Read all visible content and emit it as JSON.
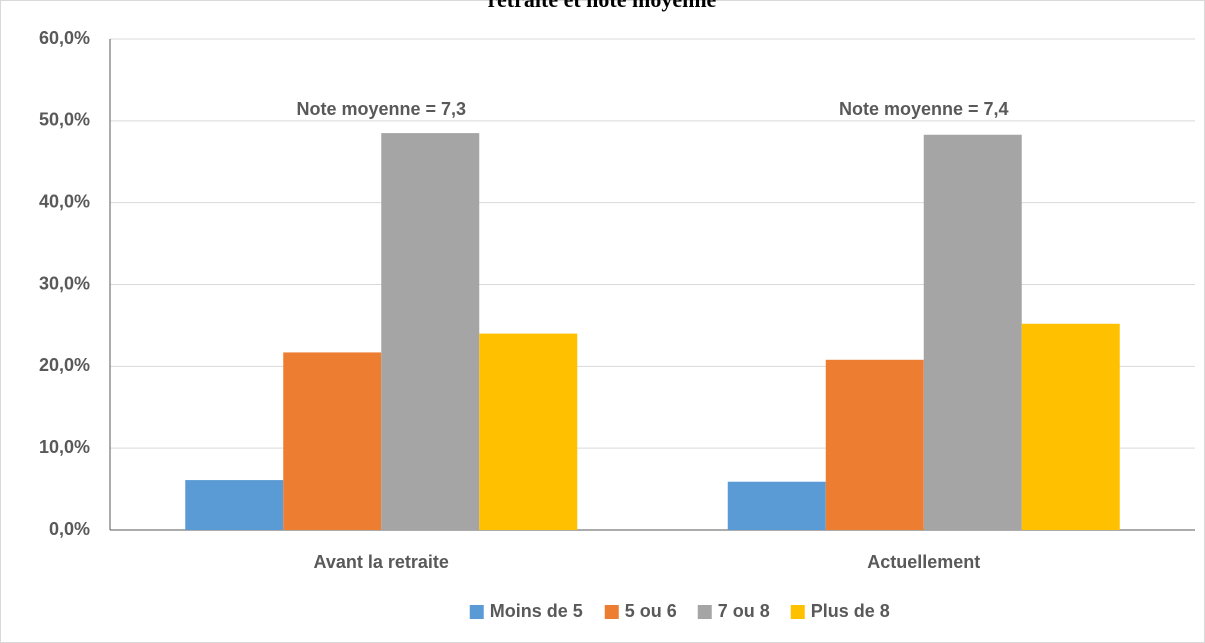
{
  "chart_data": {
    "type": "bar",
    "title": "retraite et note moyenne",
    "categories": [
      "Avant la retraite",
      "Actuellement"
    ],
    "series": [
      {
        "name": "Moins de 5",
        "color": "#5b9bd5",
        "values": [
          6.1,
          5.9
        ]
      },
      {
        "name": "5 ou 6",
        "color": "#ed7d31",
        "values": [
          21.7,
          20.8
        ]
      },
      {
        "name": "7 ou 8",
        "color": "#a5a5a5",
        "values": [
          48.5,
          48.3
        ]
      },
      {
        "name": "Plus de 8",
        "color": "#ffc000",
        "values": [
          24.0,
          25.2
        ]
      }
    ],
    "annotations": [
      "Note moyenne = 7,3",
      "Note moyenne = 7,4"
    ],
    "ylim": [
      0,
      60
    ],
    "yticks": [
      {
        "value": 0,
        "label": "0,0%"
      },
      {
        "value": 10,
        "label": "10,0%"
      },
      {
        "value": 20,
        "label": "20,0%"
      },
      {
        "value": 30,
        "label": "30,0%"
      },
      {
        "value": 40,
        "label": "40,0%"
      },
      {
        "value": 50,
        "label": "50,0%"
      },
      {
        "value": 60,
        "label": "60,0%"
      }
    ],
    "grid": true,
    "legend": "bottom"
  }
}
